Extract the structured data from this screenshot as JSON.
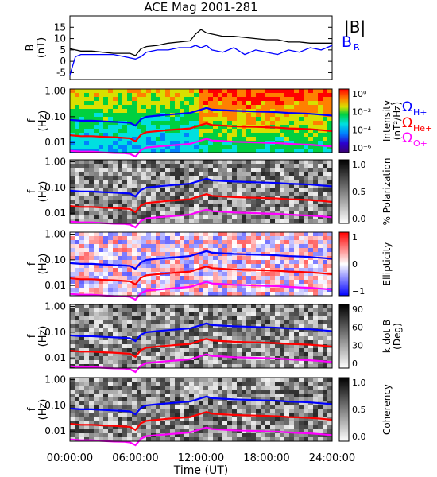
{
  "chart_data": {
    "type": "heatmap",
    "title": "ACE Mag 2001-281",
    "xlabel": "Time (UT)",
    "x_ticks": [
      "00:00:00",
      "06:00:00",
      "12:00:00",
      "18:00:00",
      "24:00:00"
    ],
    "xlim": [
      0,
      24
    ],
    "top_panel": {
      "type": "line",
      "ylabel": "B",
      "yunit": "(nT)",
      "ylim": [
        -8,
        20
      ],
      "y_ticks": [
        -5,
        0,
        5,
        10,
        15
      ],
      "series": [
        {
          "name": "|B|",
          "color": "#000000",
          "x": [
            0,
            1,
            2,
            3,
            4,
            5,
            5.5,
            6,
            6.5,
            7,
            8,
            9,
            10,
            11,
            11.5,
            12,
            12.5,
            13,
            14,
            15,
            16,
            17,
            18,
            19,
            20,
            21,
            22,
            23,
            24
          ],
          "values": [
            5.5,
            4.5,
            4.5,
            4.0,
            3.5,
            3.5,
            3.5,
            2.5,
            5.5,
            6.5,
            7,
            8,
            8.5,
            9,
            12,
            14,
            12.5,
            12,
            11,
            11,
            10.5,
            10,
            9.5,
            9.5,
            8.5,
            8.5,
            8,
            8,
            8
          ]
        },
        {
          "name": "B",
          "subscript": "R",
          "color": "#0000ff",
          "x": [
            0,
            0.5,
            1,
            2,
            3,
            4,
            5,
            6,
            6.5,
            7,
            8,
            9,
            10,
            11,
            11.5,
            12,
            12.5,
            13,
            14,
            15,
            16,
            17,
            18,
            19,
            20,
            21,
            22,
            23,
            24
          ],
          "values": [
            -6,
            2,
            3,
            3,
            3,
            3,
            2,
            1,
            2,
            4,
            5,
            5,
            6,
            6,
            7,
            6,
            7,
            5,
            4,
            6,
            3,
            5,
            4,
            3,
            5,
            4,
            6,
            5,
            7
          ]
        }
      ]
    },
    "frequency_axis": {
      "ylabel": "f",
      "yunit": "(Hz)",
      "scale": "log",
      "ylim": [
        0.004,
        1.2
      ],
      "y_ticks": [
        "0.01",
        "0.10",
        "1.00"
      ]
    },
    "gyrofrequency_lines": {
      "x": [
        0,
        1,
        2,
        3,
        4,
        5,
        5.5,
        6,
        6.5,
        7,
        8,
        9,
        10,
        11,
        12,
        12.5,
        13,
        14,
        15,
        16,
        17,
        18,
        19,
        20,
        21,
        22,
        23,
        24
      ],
      "series": [
        {
          "name": "Ω",
          "subscript": "H+",
          "color": "#0000ff",
          "values": [
            0.075,
            0.07,
            0.07,
            0.066,
            0.063,
            0.06,
            0.058,
            0.045,
            0.08,
            0.1,
            0.11,
            0.12,
            0.13,
            0.14,
            0.19,
            0.22,
            0.19,
            0.18,
            0.17,
            0.165,
            0.16,
            0.155,
            0.15,
            0.14,
            0.135,
            0.13,
            0.12,
            0.11
          ]
        },
        {
          "name": "Ω",
          "subscript": "He+",
          "color": "#ff0000",
          "values": [
            0.019,
            0.0175,
            0.0175,
            0.0165,
            0.016,
            0.015,
            0.0145,
            0.011,
            0.02,
            0.025,
            0.0275,
            0.03,
            0.0325,
            0.035,
            0.0475,
            0.055,
            0.0475,
            0.045,
            0.0425,
            0.041,
            0.04,
            0.039,
            0.0375,
            0.035,
            0.034,
            0.0325,
            0.03,
            0.0275
          ]
        },
        {
          "name": "Ω",
          "subscript": "O+",
          "color": "#ff00ff",
          "values": [
            0.0047,
            0.0044,
            0.0044,
            0.0041,
            0.0039,
            0.0038,
            0.0036,
            0.0028,
            0.005,
            0.0063,
            0.0069,
            0.0075,
            0.0081,
            0.0088,
            0.0119,
            0.0138,
            0.0119,
            0.0113,
            0.0106,
            0.0103,
            0.01,
            0.0097,
            0.0094,
            0.0088,
            0.0084,
            0.0081,
            0.0075,
            0.0069
          ]
        }
      ]
    },
    "panels": [
      {
        "id": "intensity",
        "colormap": "rainbow",
        "colorbar_label": "Intensity",
        "colorbar_unit": "(nT²/Hz)",
        "colorbar_ticks": [
          "10⁰",
          "10⁻²",
          "10⁻⁴",
          "10⁻⁶"
        ]
      },
      {
        "id": "polarization",
        "colormap": "gray",
        "colorbar_label": "% Polarization",
        "colorbar_unit": "",
        "colorbar_ticks": [
          "1.0",
          "0.5",
          "0.0"
        ]
      },
      {
        "id": "ellipticity",
        "colormap": "bluewhitered",
        "colorbar_label": "Ellipticity",
        "colorbar_unit": "",
        "colorbar_ticks": [
          "1",
          "0",
          "−1"
        ]
      },
      {
        "id": "kdotb",
        "colormap": "gray",
        "colorbar_label": "k dot B",
        "colorbar_unit": "(Deg)",
        "colorbar_ticks": [
          "90",
          "60",
          "30",
          "0"
        ]
      },
      {
        "id": "coherency",
        "colormap": "gray",
        "colorbar_label": "Coherency",
        "colorbar_unit": "",
        "colorbar_ticks": [
          "1.0",
          "0.5",
          "0.0"
        ]
      }
    ]
  }
}
